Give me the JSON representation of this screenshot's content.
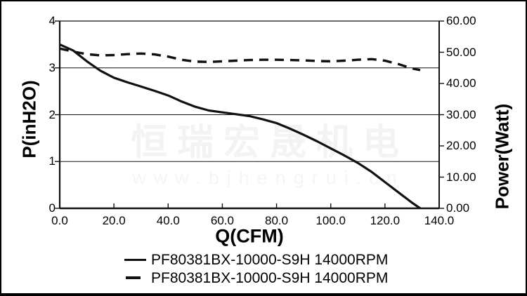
{
  "watermark": {
    "line1": "恒瑞宏晟机电",
    "line2": "www.bjhengrui.cn",
    "color_line1": "#f3f3f3",
    "color_line2": "#f5f5f5"
  },
  "chart_data": {
    "type": "line",
    "xlabel": "Q(CFM)",
    "ylabel_left": "P(inH2O)",
    "ylabel_right": "Power(Watt)",
    "x_range": [
      0,
      140
    ],
    "y_left_range": [
      0,
      4
    ],
    "y_right_range": [
      0,
      60
    ],
    "x_tick_labels": [
      "0.0",
      "20.0",
      "40.0",
      "60.0",
      "80.0",
      "100.0",
      "120.0",
      "140.0"
    ],
    "y_left_tick_labels": [
      "4",
      "3",
      "2",
      "1",
      "0"
    ],
    "y_right_tick_labels": [
      "60.00",
      "50.00",
      "40.00",
      "30.00",
      "20.00",
      "10.00",
      "0.00"
    ],
    "gridlines_left_values": [
      3,
      2,
      1
    ],
    "grid": "horizontal-only",
    "line_color": "#111111",
    "series": [
      {
        "name": "PF80381BX-10000-S9H 14000RPM",
        "style": "solid",
        "axis": "left",
        "points": [
          [
            0,
            3.5
          ],
          [
            5,
            3.37
          ],
          [
            10,
            3.14
          ],
          [
            15,
            2.94
          ],
          [
            20,
            2.79
          ],
          [
            25,
            2.69
          ],
          [
            30,
            2.6
          ],
          [
            35,
            2.51
          ],
          [
            40,
            2.41
          ],
          [
            45,
            2.28
          ],
          [
            50,
            2.17
          ],
          [
            55,
            2.09
          ],
          [
            60,
            2.05
          ],
          [
            65,
            2.01
          ],
          [
            70,
            1.97
          ],
          [
            75,
            1.9
          ],
          [
            80,
            1.82
          ],
          [
            85,
            1.7
          ],
          [
            90,
            1.57
          ],
          [
            95,
            1.43
          ],
          [
            100,
            1.28
          ],
          [
            105,
            1.13
          ],
          [
            110,
            0.97
          ],
          [
            115,
            0.78
          ],
          [
            120,
            0.56
          ],
          [
            125,
            0.34
          ],
          [
            130,
            0.12
          ],
          [
            133,
            0.0
          ]
        ]
      },
      {
        "name": "PF80381BX-10000-S9H 14000RPM",
        "style": "dashed",
        "axis": "right",
        "points": [
          [
            0,
            51.2
          ],
          [
            5,
            50.2
          ],
          [
            10,
            49.4
          ],
          [
            15,
            49.0
          ],
          [
            20,
            49.1
          ],
          [
            25,
            49.4
          ],
          [
            30,
            49.6
          ],
          [
            35,
            49.3
          ],
          [
            40,
            48.6
          ],
          [
            45,
            47.6
          ],
          [
            50,
            47.0
          ],
          [
            55,
            46.9
          ],
          [
            60,
            47.1
          ],
          [
            65,
            47.3
          ],
          [
            70,
            47.5
          ],
          [
            75,
            47.6
          ],
          [
            80,
            47.6
          ],
          [
            85,
            47.5
          ],
          [
            90,
            47.4
          ],
          [
            95,
            47.2
          ],
          [
            100,
            47.1
          ],
          [
            105,
            47.3
          ],
          [
            110,
            47.6
          ],
          [
            115,
            47.8
          ],
          [
            120,
            47.3
          ],
          [
            125,
            46.2
          ],
          [
            130,
            44.8
          ],
          [
            133,
            44.3
          ]
        ]
      }
    ],
    "legend": [
      {
        "label": "PF80381BX-10000-S9H 14000RPM",
        "style": "solid"
      },
      {
        "label": "PF80381BX-10000-S9H 14000RPM",
        "style": "dashed"
      }
    ],
    "legend_position": "bottom"
  }
}
